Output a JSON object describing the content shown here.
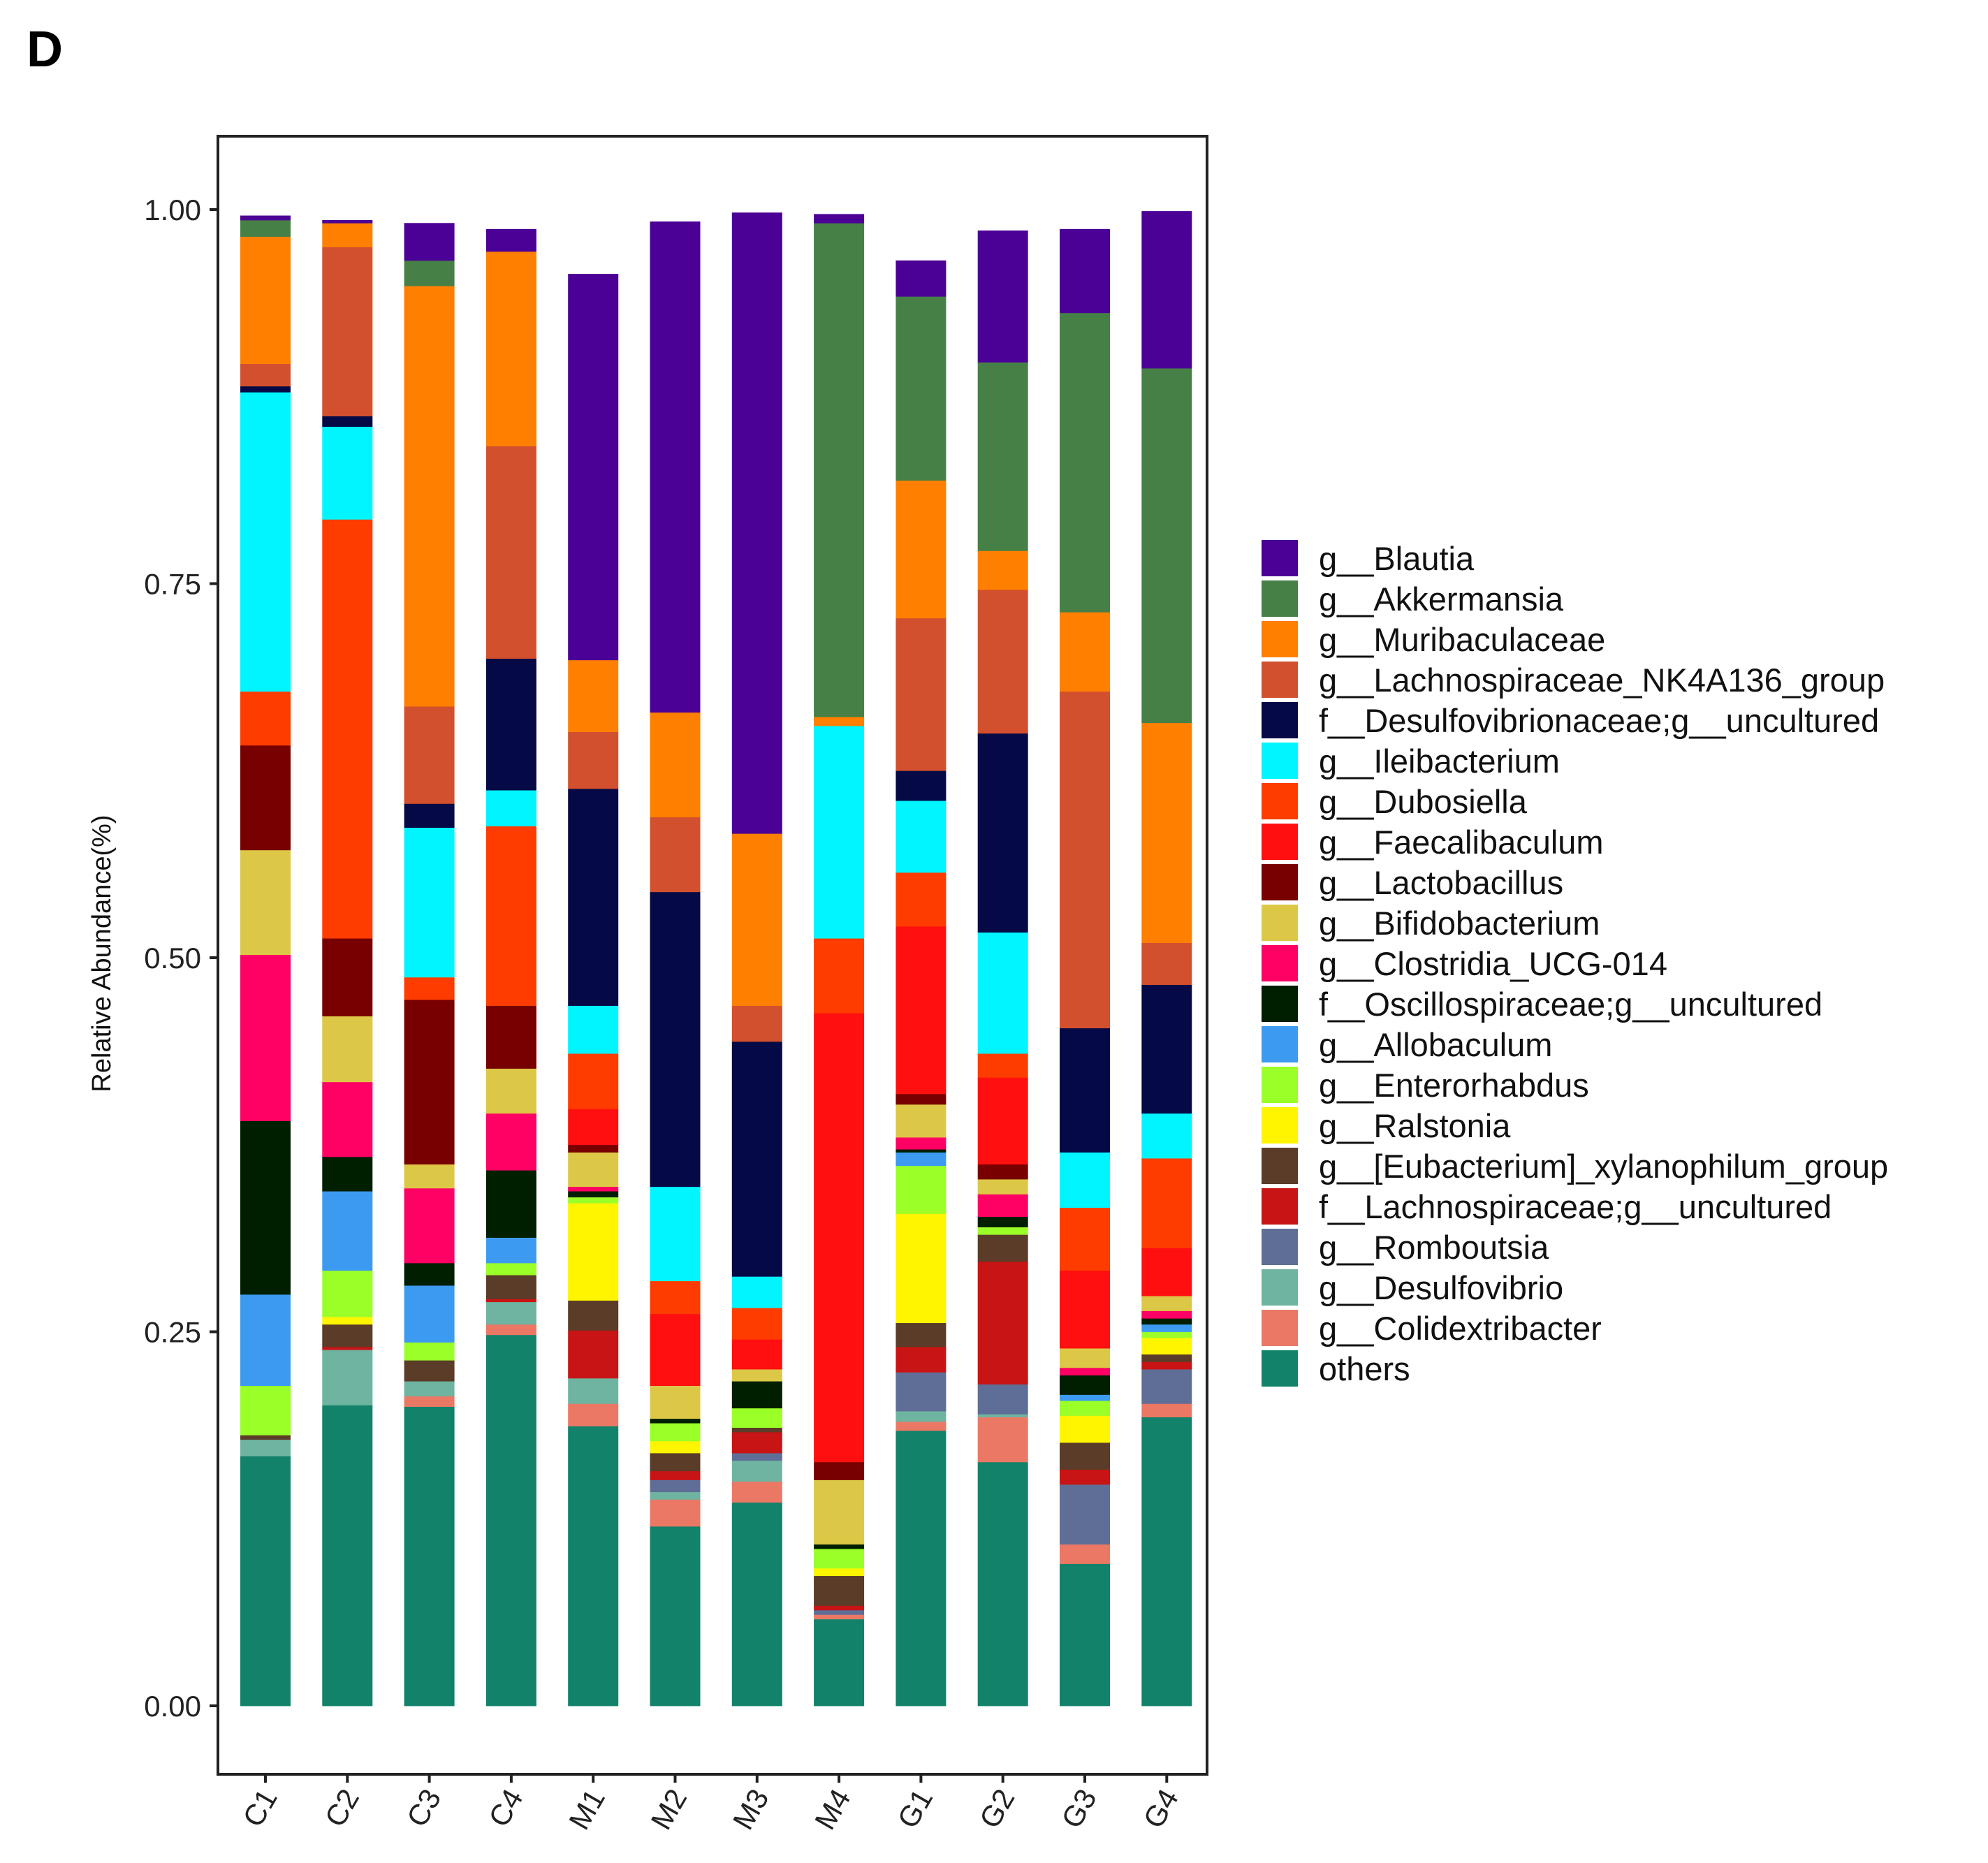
{
  "panel_label": "D",
  "chart_data": {
    "type": "bar",
    "stacked": true,
    "title": "",
    "xlabel": "",
    "ylabel": "Relative Abundance(%)",
    "ylim": [
      0,
      1
    ],
    "yticks": [
      "0.00",
      "0.25",
      "0.50",
      "0.75",
      "1.00"
    ],
    "categories": [
      "C1",
      "C2",
      "C3",
      "C4",
      "M1",
      "M2",
      "M3",
      "M4",
      "G1",
      "G2",
      "G3",
      "G4"
    ],
    "legend_position": "right",
    "series": [
      {
        "name": "g__Blautia",
        "color": "#4B0096",
        "values": [
          0.003,
          0.002,
          0.025,
          0.015,
          0.258,
          0.328,
          0.415,
          0.006,
          0.024,
          0.088,
          0.056,
          0.105
        ]
      },
      {
        "name": "g__Akkermansia",
        "color": "#468046",
        "values": [
          0.011,
          0,
          0.017,
          0,
          0,
          0,
          0,
          0.33,
          0.123,
          0.126,
          0.2,
          0.237
        ]
      },
      {
        "name": "g__Muribaculaceae",
        "color": "#FF7F00",
        "values": [
          0.085,
          0.016,
          0.281,
          0.13,
          0.048,
          0.07,
          0.115,
          0.006,
          0.092,
          0.026,
          0.053,
          0.147
        ]
      },
      {
        "name": "g__Lachnospiraceae_NK4A136_group",
        "color": "#D2502D",
        "values": [
          0.015,
          0.113,
          0.065,
          0.142,
          0.038,
          0.05,
          0.024,
          0,
          0.102,
          0.096,
          0.225,
          0.028
        ]
      },
      {
        "name": "f__Desulfovibrionaceae;g__uncultured",
        "color": "#050A46",
        "values": [
          0.004,
          0.007,
          0.016,
          0.088,
          0.145,
          0.197,
          0.157,
          0,
          0.02,
          0.133,
          0.083,
          0.086
        ]
      },
      {
        "name": "g__Ileibacterium",
        "color": "#00F5FF",
        "values": [
          0.2,
          0.062,
          0.1,
          0.024,
          0.032,
          0.063,
          0.021,
          0.142,
          0.048,
          0.081,
          0.037,
          0.03
        ]
      },
      {
        "name": "g__Dubosiella",
        "color": "#FF3C00",
        "values": [
          0.036,
          0.28,
          0.015,
          0.12,
          0.037,
          0.022,
          0.021,
          0.05,
          0.036,
          0.016,
          0.042,
          0.06
        ]
      },
      {
        "name": "g__Faecalibaculum",
        "color": "#FF0F0F",
        "values": [
          0,
          0,
          0,
          0,
          0.024,
          0.048,
          0.02,
          0.3,
          0.112,
          0.058,
          0.052,
          0.032
        ]
      },
      {
        "name": "g__Lactobacillus",
        "color": "#780000",
        "values": [
          0.07,
          0.052,
          0.11,
          0.042,
          0.005,
          0,
          0,
          0.012,
          0.007,
          0.01,
          0,
          0
        ]
      },
      {
        "name": "g__Bifidobacterium",
        "color": "#DCC846",
        "values": [
          0.07,
          0.044,
          0.016,
          0.03,
          0.023,
          0.022,
          0.008,
          0.043,
          0.022,
          0.01,
          0.013,
          0.01
        ]
      },
      {
        "name": "g__Clostridia_UCG-014",
        "color": "#FF0064",
        "values": [
          0.111,
          0.05,
          0.05,
          0.038,
          0.003,
          0,
          0,
          0,
          0.008,
          0.015,
          0.005,
          0.005
        ]
      },
      {
        "name": "f__Oscillospiraceae;g__uncultured",
        "color": "#001E00",
        "values": [
          0.116,
          0.023,
          0.015,
          0.045,
          0.004,
          0.003,
          0.018,
          0.003,
          0.002,
          0.007,
          0.013,
          0.004
        ]
      },
      {
        "name": "g__Allobaculum",
        "color": "#3C9BF0",
        "values": [
          0.061,
          0.053,
          0.038,
          0.017,
          0,
          0,
          0,
          0,
          0.009,
          0,
          0.004,
          0.005
        ]
      },
      {
        "name": "g__Enterorhabdus",
        "color": "#9BFF28",
        "values": [
          0.033,
          0.031,
          0.012,
          0.008,
          0.004,
          0.012,
          0.013,
          0.013,
          0.032,
          0.005,
          0.01,
          0.004
        ]
      },
      {
        "name": "g__Ralstonia",
        "color": "#FFF500",
        "values": [
          0,
          0.005,
          0,
          0,
          0.065,
          0.008,
          0,
          0.005,
          0.073,
          0,
          0.018,
          0.011
        ]
      },
      {
        "name": "g__[Eubacterium]_xylanophilum_group",
        "color": "#5A3C28",
        "values": [
          0.003,
          0.015,
          0.014,
          0.016,
          0.02,
          0.012,
          0.003,
          0.02,
          0.016,
          0.018,
          0.018,
          0.005
        ]
      },
      {
        "name": "f__Lachnospiraceae;g__uncultured",
        "color": "#C81414",
        "values": [
          0,
          0.002,
          0,
          0.002,
          0.032,
          0.006,
          0.014,
          0.003,
          0.017,
          0.082,
          0.01,
          0.005
        ]
      },
      {
        "name": "g__Romboutsia",
        "color": "#5F6E96",
        "values": [
          0,
          0,
          0,
          0,
          0,
          0.008,
          0.005,
          0.003,
          0.026,
          0.02,
          0.04,
          0.023
        ]
      },
      {
        "name": "g__Desulfovibrio",
        "color": "#6EB4A0",
        "values": [
          0.011,
          0.037,
          0.01,
          0.015,
          0.017,
          0.005,
          0.014,
          0,
          0.007,
          0.002,
          0,
          0
        ]
      },
      {
        "name": "g__Colidextribacter",
        "color": "#EB7864",
        "values": [
          0,
          0,
          0.007,
          0.007,
          0.015,
          0.018,
          0.014,
          0.003,
          0.006,
          0.03,
          0.013,
          0.009
        ]
      },
      {
        "name": "others",
        "color": "#12826A",
        "values": [
          0.167,
          0.201,
          0.2,
          0.248,
          0.187,
          0.12,
          0.136,
          0.058,
          0.184,
          0.163,
          0.095,
          0.193
        ]
      }
    ]
  }
}
